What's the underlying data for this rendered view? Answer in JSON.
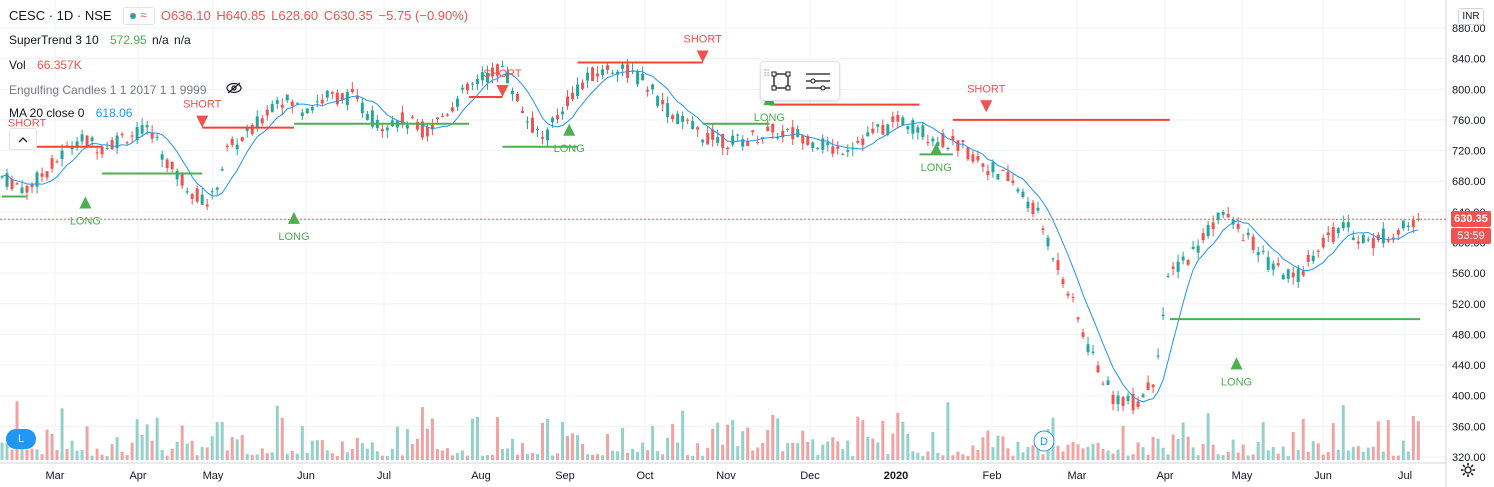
{
  "legend": {
    "symbol": "CESC · 1D · NSE",
    "open": "O636.10",
    "high": "H640.85",
    "low": "L628.60",
    "close": "C630.35",
    "change": "−5.75 (−0.90%)",
    "supertrend_name": "SuperTrend 3 10",
    "supertrend_value": "572.95",
    "supertrend_na1": "n/a",
    "supertrend_na2": "n/a",
    "vol_name": "Vol",
    "vol_value": "66.357K",
    "engulfing_name": "Engulfing Candles 1 1 2017 1 1 9999",
    "ma_name": "MA 20 close 0",
    "ma_value": "618.06"
  },
  "currency": "INR",
  "last_price_label": "630.35",
  "countdown_label": "53:59",
  "logo_letter": "L",
  "event_marker": "D",
  "icons": [
    "collapse-chevron-icon",
    "eye-crossed-icon",
    "rectangle-tool-icon",
    "settings-lines-icon",
    "settings-gear-icon",
    "tradingview-cloud-icon"
  ],
  "colors": {
    "up": "#26a69a",
    "down": "#ef5350",
    "ma": "#2196f3",
    "supertrend_up": "#4caf50",
    "supertrend_down": "#f44336"
  },
  "chart_data": {
    "type": "candlestick",
    "yaxis_ticks": [
      "320.00",
      "360.00",
      "400.00",
      "440.00",
      "480.00",
      "520.00",
      "560.00",
      "600.00",
      "640.00",
      "680.00",
      "720.00",
      "760.00",
      "800.00",
      "840.00",
      "880.00"
    ],
    "ylim": [
      320,
      880
    ],
    "xaxis_ticks": [
      "Mar",
      "Apr",
      "May",
      "Jun",
      "Jul",
      "Aug",
      "Sep",
      "Oct",
      "Nov",
      "Dec",
      "2020",
      "Feb",
      "Mar",
      "Apr",
      "May",
      "Jun",
      "Jul"
    ],
    "signals": [
      {
        "label": "SHORT",
        "price": 725,
        "ti": 0
      },
      {
        "label": "LONG",
        "price": 660,
        "ti": 0
      },
      {
        "label": "SHORT",
        "price": 750,
        "ti": 2
      },
      {
        "label": "LONG",
        "price": 640,
        "ti": 3
      },
      {
        "label": "SHORT",
        "price": 790,
        "ti": 5
      },
      {
        "label": "LONG",
        "price": 755,
        "ti": 5
      },
      {
        "label": "SHORT",
        "price": 835,
        "ti": 7
      },
      {
        "label": "LONG",
        "price": 795,
        "ti": 8
      },
      {
        "label": "LONG",
        "price": 730,
        "ti": 10
      },
      {
        "label": "SHORT",
        "price": 770,
        "ti": 11
      },
      {
        "label": "LONG",
        "price": 450,
        "ti": 13
      }
    ],
    "last_price": 630.35,
    "ma_last": 618.06,
    "supertrend_last": 572.95
  }
}
